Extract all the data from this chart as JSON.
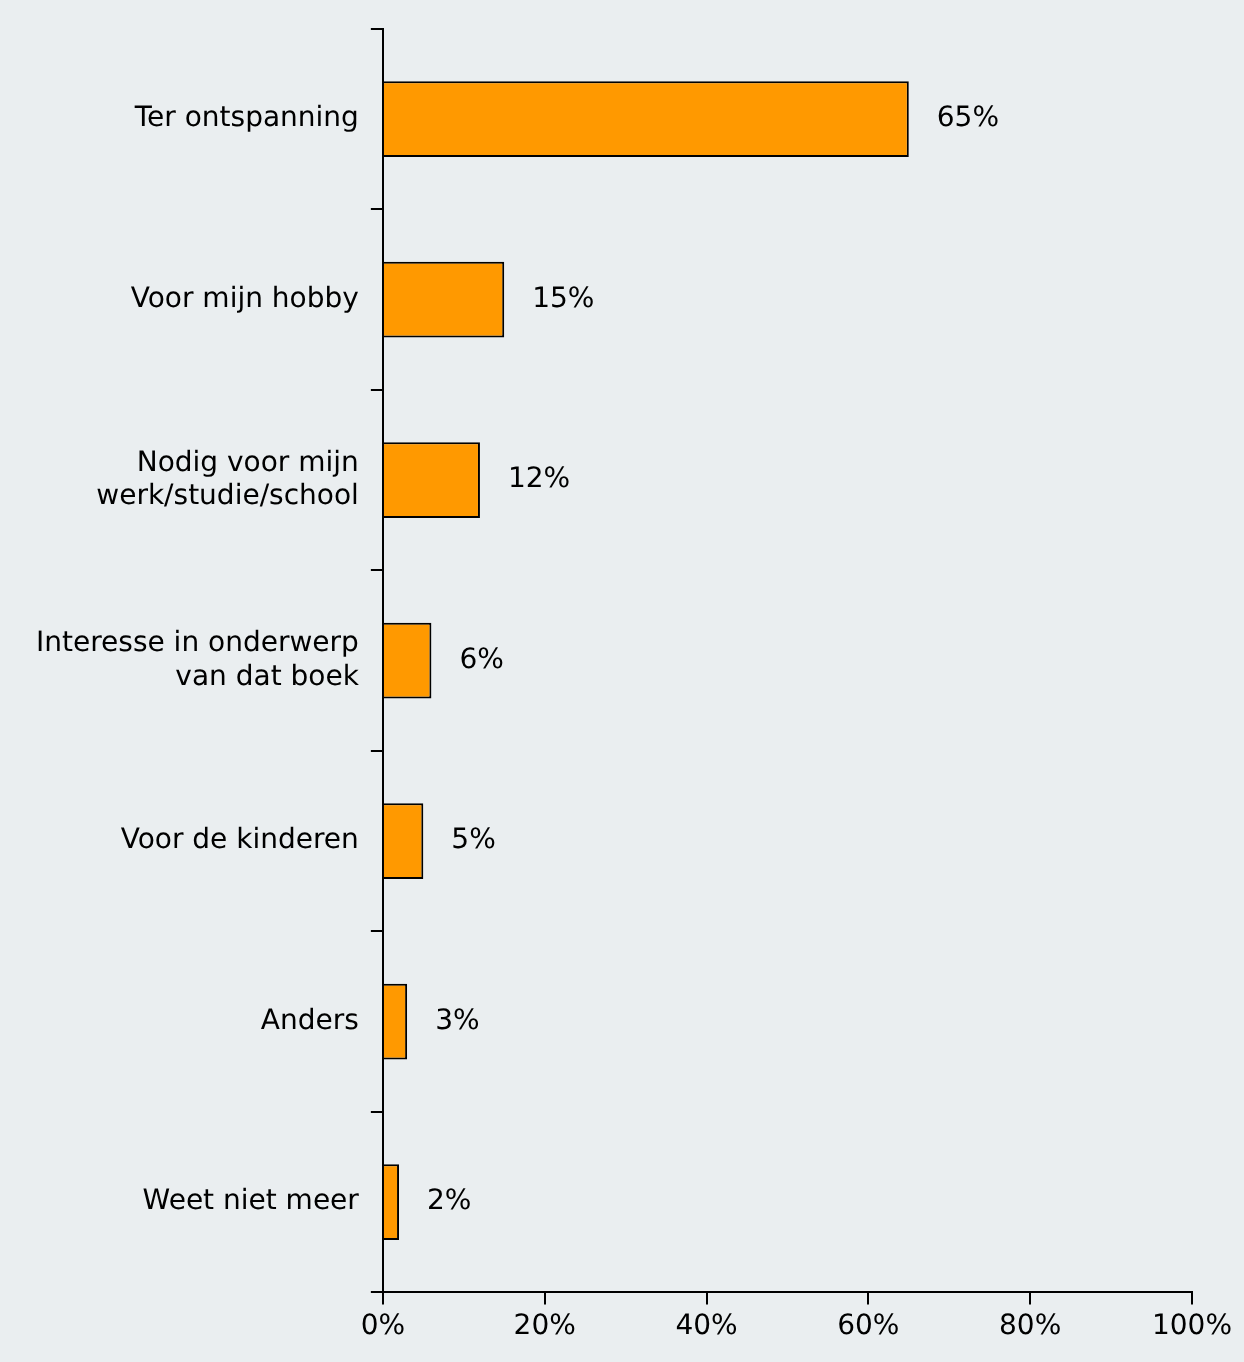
{
  "chart_data": {
    "type": "bar",
    "orientation": "horizontal",
    "categories": [
      "Ter ontspanning",
      "Voor mijn hobby",
      "Nodig voor mijn werk/studie/school",
      "Interesse in onderwerp van dat boek",
      "Voor de kinderen",
      "Anders",
      "Weet niet meer"
    ],
    "values": [
      65,
      15,
      12,
      6,
      5,
      3,
      2
    ],
    "value_labels": [
      "65%",
      "15%",
      "12%",
      "6%",
      "5%",
      "3%",
      "2%"
    ],
    "color": "#ff9900",
    "xlim": [
      0,
      100
    ],
    "xticks": [
      {
        "value": 0,
        "label": "0%"
      },
      {
        "value": 20,
        "label": "20%"
      },
      {
        "value": 40,
        "label": "40%"
      },
      {
        "value": 60,
        "label": "60%"
      },
      {
        "value": 80,
        "label": "80%"
      },
      {
        "value": 100,
        "label": "100%"
      }
    ],
    "grid": false,
    "legend": false
  }
}
